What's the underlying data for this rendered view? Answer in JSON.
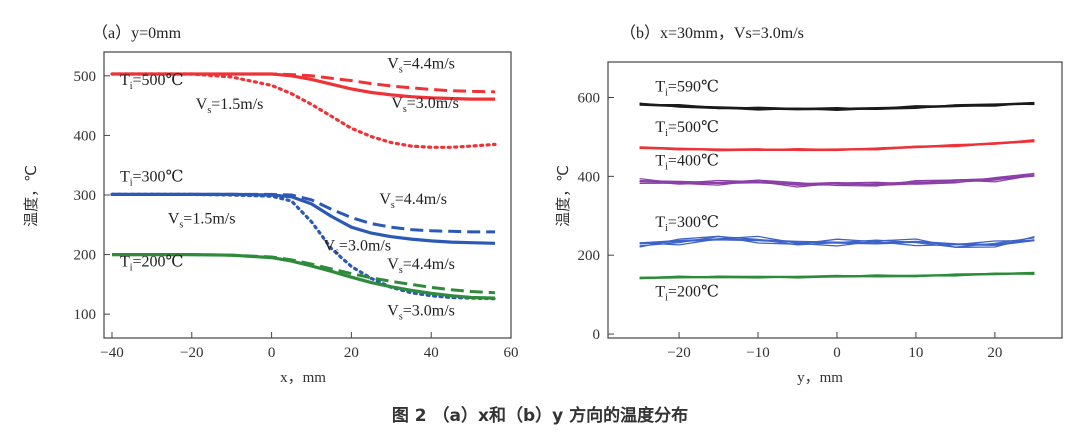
{
  "caption": "图 2 （a）x和（b）y 方向的温度分布",
  "colors": {
    "red": "#ee3338",
    "blue": "#2b59b5",
    "green": "#2e8b3b",
    "black": "#1b1b1b",
    "purple": "#8b3fa8",
    "lightblue": "#3d63c8"
  },
  "chart_data": [
    {
      "type": "line",
      "title": "（a）y=0mm",
      "xlabel": "x，mm",
      "ylabel": "温度，℃",
      "xlim": [
        -42,
        60
      ],
      "ylim": [
        60,
        540
      ],
      "xticks": [
        -40,
        -20,
        0,
        20,
        40,
        60
      ],
      "yticks": [
        100,
        200,
        300,
        400,
        500
      ],
      "x": [
        -40,
        -30,
        -20,
        -10,
        0,
        5,
        10,
        15,
        20,
        25,
        30,
        35,
        40,
        45,
        50,
        56
      ],
      "series": [
        {
          "name": "Ti=500℃ Vs=4.4m/s",
          "color": "red",
          "style": "dashed",
          "values": [
            503,
            503,
            503,
            503,
            503,
            502,
            500,
            496,
            492,
            487,
            483,
            480,
            477,
            475,
            474,
            473
          ]
        },
        {
          "name": "Ti=500℃ Vs=3.0m/s",
          "color": "red",
          "style": "solid",
          "values": [
            503,
            503,
            503,
            503,
            503,
            500,
            494,
            486,
            478,
            472,
            468,
            465,
            463,
            462,
            461,
            461
          ]
        },
        {
          "name": "Ti=500℃ Vs=1.5m/s",
          "color": "red",
          "style": "dotted",
          "values": [
            503,
            503,
            503,
            498,
            484,
            470,
            452,
            432,
            412,
            398,
            388,
            382,
            380,
            380,
            382,
            385
          ]
        },
        {
          "name": "Ti=300℃ Vs=4.4m/s",
          "color": "blue",
          "style": "dashed",
          "values": [
            301,
            301,
            301,
            301,
            301,
            300,
            292,
            276,
            262,
            252,
            246,
            242,
            240,
            239,
            238,
            238
          ]
        },
        {
          "name": "Ti=300℃ Vs=3.0m/s",
          "color": "blue",
          "style": "solid",
          "values": [
            301,
            301,
            301,
            301,
            300,
            297,
            285,
            264,
            246,
            236,
            230,
            226,
            223,
            221,
            220,
            219
          ]
        },
        {
          "name": "Ti=300℃ Vs=1.5m/s",
          "color": "blue",
          "style": "dotted",
          "values": [
            301,
            301,
            301,
            300,
            298,
            290,
            255,
            210,
            180,
            160,
            145,
            136,
            131,
            128,
            127,
            126
          ]
        },
        {
          "name": "Ti=200℃ Vs=4.4m/s",
          "color": "green",
          "style": "dashed",
          "values": [
            200,
            200,
            200,
            199,
            196,
            191,
            184,
            176,
            168,
            161,
            155,
            150,
            145,
            141,
            138,
            136
          ]
        },
        {
          "name": "Ti=200℃ Vs=3.0m/s",
          "color": "green",
          "style": "solid",
          "values": [
            200,
            200,
            200,
            199,
            195,
            189,
            181,
            172,
            162,
            153,
            146,
            140,
            135,
            131,
            128,
            127
          ]
        }
      ],
      "annotations": [
        {
          "label": "Ti=500℃",
          "x": -38,
          "y": 485
        },
        {
          "label": "Vs=4.4m/s",
          "x": 29,
          "y": 512
        },
        {
          "label": "Vs=1.5m/s",
          "x": -19,
          "y": 444
        },
        {
          "label": "Vs=3.0m/s",
          "x": 30,
          "y": 446
        },
        {
          "label": "Ti=300℃",
          "x": -38,
          "y": 323
        },
        {
          "label": "Vs=4.4m/s",
          "x": 27,
          "y": 285
        },
        {
          "label": "Vs=1.5m/s",
          "x": -26,
          "y": 252
        },
        {
          "label": "Vs=3.0m/s",
          "x": 13,
          "y": 207
        },
        {
          "label": "Vs=4.4m/s",
          "x": 29,
          "y": 176
        },
        {
          "label": "Ti=200℃",
          "x": -38,
          "y": 180
        },
        {
          "label": "Vs=3.0m/s",
          "x": 29,
          "y": 98
        }
      ]
    },
    {
      "type": "line",
      "title": "（b）x=30mm，Vs=3.0m/s",
      "xlabel": "y，mm",
      "ylabel": "温度，℃",
      "xlim": [
        -29,
        28.5
      ],
      "ylim": [
        -10,
        690
      ],
      "xticks": [
        -20,
        -10,
        0,
        10,
        20
      ],
      "yticks": [
        0,
        200,
        400,
        600
      ],
      "y_positions": [
        -25,
        -20,
        -15,
        -10,
        -5,
        0,
        5,
        10,
        15,
        20,
        25
      ],
      "series": [
        {
          "name": "Ti=590℃",
          "color": "black",
          "values": [
            582,
            578,
            575,
            572,
            570,
            571,
            573,
            575,
            578,
            582,
            586
          ]
        },
        {
          "name": "Ti=500℃",
          "color": "red",
          "values": [
            472,
            470,
            468,
            467,
            467,
            468,
            470,
            474,
            478,
            484,
            490
          ]
        },
        {
          "name": "Ti=400℃",
          "color": "purple",
          "values": [
            388,
            386,
            383,
            385,
            380,
            383,
            378,
            382,
            390,
            393,
            402
          ]
        },
        {
          "name": "Ti=300℃",
          "color": "lightblue",
          "values": [
            230,
            236,
            240,
            238,
            234,
            232,
            230,
            234,
            228,
            226,
            238
          ]
        },
        {
          "name": "Ti=200℃",
          "color": "green",
          "values": [
            143,
            144,
            144,
            145,
            145,
            146,
            147,
            148,
            150,
            152,
            154
          ]
        }
      ],
      "annotations": [
        {
          "label": "Ti=590℃",
          "x": -23,
          "y": 615
        },
        {
          "label": "Ti=500℃",
          "x": -23,
          "y": 512
        },
        {
          "label": "Ti=400℃",
          "x": -23,
          "y": 427
        },
        {
          "label": "Ti=300℃",
          "x": -23,
          "y": 272
        },
        {
          "label": "Ti=200℃",
          "x": -23,
          "y": 95
        }
      ]
    }
  ]
}
